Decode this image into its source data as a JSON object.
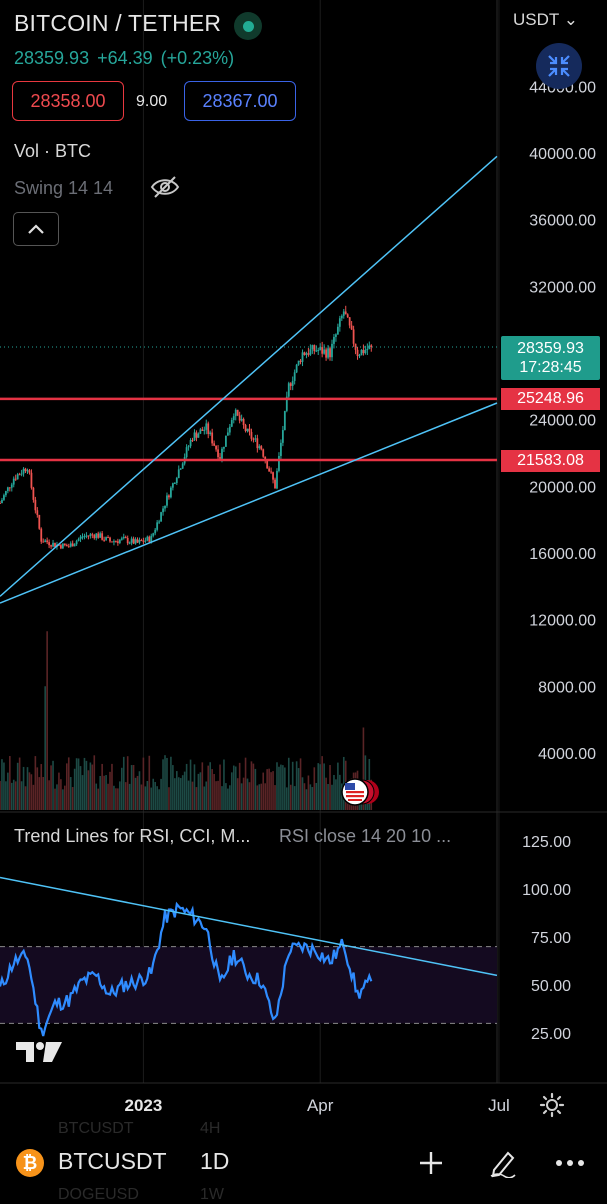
{
  "header": {
    "title": "BITCOIN / TETHER",
    "last_price": "28359.93",
    "change": "+64.39",
    "change_pct": "(+0.23%)",
    "sell_price": "28358.00",
    "spread": "9.00",
    "buy_price": "28367.00",
    "currency": "USDT",
    "vol_label": "Vol · BTC",
    "swing_label": "Swing 14 14"
  },
  "price_tags": {
    "last": "28359.93",
    "countdown": "17:28:45",
    "resistance": "25248.96",
    "support": "21583.08"
  },
  "indicator": {
    "title": "Trend Lines for RSI, CCI, M...",
    "params": "RSI close 14 20 10 ..."
  },
  "bottom_bar": {
    "symbol": "BTCUSDT",
    "interval": "1D",
    "ghost_symbol_1": "BTCUSDT",
    "ghost_interval_1": "4H",
    "ghost_symbol_2": "DOGEUSD",
    "ghost_interval_2": "1W",
    "coin_glyph": "₿"
  },
  "colors": {
    "up": "#26a69a",
    "down": "#ef5350",
    "trendline": "#4fc3f7",
    "level": "#e53344",
    "rsi": "#2f8cff"
  },
  "icons": [
    "live-status-icon",
    "eye-off-icon",
    "chevron-up-icon",
    "collapse-arrows-icon",
    "us-flag-event-icon",
    "tradingview-logo-icon",
    "gear-icon",
    "plus-icon",
    "pen-icon",
    "more-icon"
  ],
  "chart_data": [
    {
      "type": "candlestick",
      "symbol": "BTCUSDT",
      "interval": "1D",
      "y_ticks": [
        44000,
        40000,
        36000,
        32000,
        28000,
        24000,
        20000,
        16000,
        12000,
        8000,
        4000
      ],
      "y_tick_labels": [
        "44000.00",
        "40000.00",
        "36000.00",
        "32000.00",
        "",
        "24000.00",
        "20000.00",
        "16000.00",
        "12000.00",
        "8000.00",
        "4000.00"
      ],
      "ylim": [
        1500,
        46000
      ],
      "x_labels": [
        "2023",
        "Apr",
        "Jul"
      ],
      "last_price": 28359.93,
      "horizontal_levels": [
        25248.96,
        21583.08
      ],
      "trend_channel": {
        "upper": [
          [
            "2022-10-20",
            13400
          ],
          [
            "2023-06-30",
            39800
          ]
        ],
        "lower": [
          [
            "2022-10-20",
            13000
          ],
          [
            "2023-06-30",
            25000
          ]
        ]
      },
      "closes_weekly": [
        [
          "2022-10-20",
          19000
        ],
        [
          "2022-10-27",
          20500
        ],
        [
          "2022-11-03",
          21200
        ],
        [
          "2022-11-10",
          16800
        ],
        [
          "2022-11-17",
          16500
        ],
        [
          "2022-11-24",
          16400
        ],
        [
          "2022-12-01",
          17000
        ],
        [
          "2022-12-08",
          17100
        ],
        [
          "2022-12-15",
          16700
        ],
        [
          "2022-12-22",
          16800
        ],
        [
          "2022-12-29",
          16600
        ],
        [
          "2023-01-05",
          16900
        ],
        [
          "2023-01-12",
          19000
        ],
        [
          "2023-01-19",
          21000
        ],
        [
          "2023-01-26",
          23000
        ],
        [
          "2023-02-02",
          23500
        ],
        [
          "2023-02-09",
          21800
        ],
        [
          "2023-02-16",
          24500
        ],
        [
          "2023-02-23",
          23200
        ],
        [
          "2023-03-02",
          22300
        ],
        [
          "2023-03-09",
          20000
        ],
        [
          "2023-03-16",
          26000
        ],
        [
          "2023-03-23",
          28000
        ],
        [
          "2023-03-30",
          28200
        ],
        [
          "2023-04-06",
          28000
        ],
        [
          "2023-04-13",
          30500
        ],
        [
          "2023-04-20",
          28000
        ],
        [
          "2023-04-27",
          28360
        ]
      ],
      "volume_ylim": [
        0,
        16000
      ]
    },
    {
      "type": "line",
      "name": "RSI",
      "y_ticks": [
        25,
        50,
        75,
        100,
        125
      ],
      "y_tick_labels": [
        "25.00",
        "50.00",
        "75.00",
        "100.00",
        "125.00"
      ],
      "ylim": [
        18,
        140
      ],
      "band": [
        30,
        70
      ],
      "values_weekly": [
        [
          "2022-10-20",
          48
        ],
        [
          "2022-10-27",
          62
        ],
        [
          "2022-11-03",
          65
        ],
        [
          "2022-11-10",
          25
        ],
        [
          "2022-11-17",
          40
        ],
        [
          "2022-11-24",
          42
        ],
        [
          "2022-12-01",
          52
        ],
        [
          "2022-12-08",
          55
        ],
        [
          "2022-12-15",
          45
        ],
        [
          "2022-12-22",
          50
        ],
        [
          "2022-12-29",
          52
        ],
        [
          "2023-01-05",
          56
        ],
        [
          "2023-01-12",
          85
        ],
        [
          "2023-01-19",
          90
        ],
        [
          "2023-01-26",
          86
        ],
        [
          "2023-02-02",
          80
        ],
        [
          "2023-02-09",
          50
        ],
        [
          "2023-02-16",
          66
        ],
        [
          "2023-02-23",
          56
        ],
        [
          "2023-03-02",
          52
        ],
        [
          "2023-03-09",
          30
        ],
        [
          "2023-03-16",
          68
        ],
        [
          "2023-03-23",
          70
        ],
        [
          "2023-03-30",
          68
        ],
        [
          "2023-04-06",
          62
        ],
        [
          "2023-04-13",
          72
        ],
        [
          "2023-04-20",
          45
        ],
        [
          "2023-04-27",
          52
        ]
      ],
      "trendline": [
        [
          "2022-10-20",
          106
        ],
        [
          "2023-06-30",
          55
        ]
      ]
    }
  ]
}
